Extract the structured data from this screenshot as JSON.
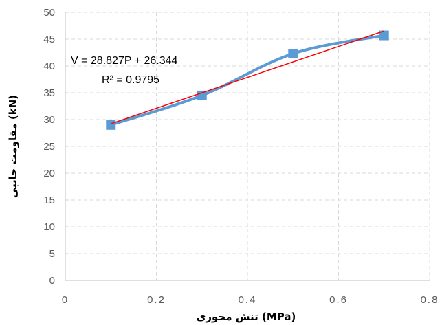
{
  "chart_data": {
    "type": "scatter",
    "title": "",
    "xlabel": "تنش محوری (MPa)",
    "ylabel": "مقاومت جانبی (kN)",
    "xlim": [
      0,
      0.8
    ],
    "ylim": [
      0,
      50
    ],
    "xticks": [
      "0",
      "0.2",
      "0.4",
      "0.6",
      "0.8"
    ],
    "yticks": [
      "0",
      "5",
      "10",
      "15",
      "20",
      "25",
      "30",
      "35",
      "40",
      "45",
      "50"
    ],
    "grid": true,
    "legend": "none",
    "series": [
      {
        "x": [
          0.1,
          0.3,
          0.5,
          0.7
        ],
        "y": [
          29.0,
          34.5,
          42.3,
          45.7
        ],
        "color": "#5B9BD5",
        "marker": "square",
        "line": "smooth"
      }
    ],
    "trendline": {
      "type": "linear",
      "slope": 28.827,
      "intercept": 26.344,
      "x_range": [
        0.1,
        0.7
      ],
      "color": "#FF0000",
      "equation": "V = 28.827P + 26.344",
      "r_squared": "R² = 0.9795"
    }
  }
}
